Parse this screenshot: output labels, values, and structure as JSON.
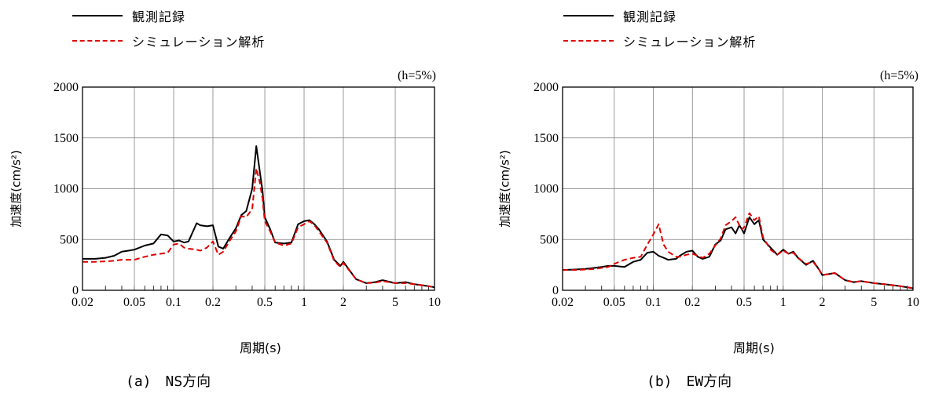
{
  "legend": {
    "observed": "観測記録",
    "simulation": "シミュレーション解析"
  },
  "colors": {
    "observed": "#000000",
    "simulation": "#e00000",
    "grid": "#808080"
  },
  "chart_data": [
    {
      "type": "line",
      "note": "(h=5%)",
      "caption": "(a)　NS方向",
      "xlabel": "周期(s)",
      "ylabel": "加速度(cm/s²)",
      "xscale": "log",
      "xlim": [
        0.02,
        10
      ],
      "ylim": [
        0,
        2000
      ],
      "xticks": [
        "0.02",
        "0.05",
        "0.1",
        "0.2",
        "0.5",
        "1",
        "2",
        "5",
        "10"
      ],
      "yticks": [
        "0",
        "500",
        "1000",
        "1500",
        "2000"
      ],
      "grid": true,
      "series": [
        {
          "name": "観測記録",
          "style": "solid",
          "x": [
            0.02,
            0.025,
            0.03,
            0.035,
            0.04,
            0.045,
            0.05,
            0.06,
            0.07,
            0.08,
            0.09,
            0.1,
            0.11,
            0.12,
            0.13,
            0.15,
            0.16,
            0.18,
            0.2,
            0.22,
            0.24,
            0.27,
            0.3,
            0.33,
            0.36,
            0.4,
            0.43,
            0.46,
            0.48,
            0.5,
            0.55,
            0.6,
            0.7,
            0.8,
            0.9,
            1.0,
            1.1,
            1.2,
            1.3,
            1.5,
            1.7,
            1.9,
            2.0,
            2.5,
            3.0,
            3.5,
            4.0,
            5.0,
            6.0,
            7.0,
            8.0,
            9.0,
            10.0
          ],
          "y": [
            310,
            310,
            320,
            340,
            380,
            390,
            400,
            440,
            460,
            550,
            540,
            480,
            490,
            470,
            480,
            660,
            640,
            630,
            640,
            430,
            410,
            520,
            610,
            740,
            780,
            1000,
            1420,
            1150,
            980,
            720,
            600,
            470,
            460,
            470,
            650,
            680,
            690,
            650,
            600,
            480,
            300,
            240,
            280,
            110,
            70,
            80,
            100,
            70,
            80,
            60,
            50,
            40,
            30
          ]
        },
        {
          "name": "シミュレーション解析",
          "style": "dashed",
          "x": [
            0.02,
            0.025,
            0.03,
            0.035,
            0.04,
            0.045,
            0.05,
            0.06,
            0.07,
            0.08,
            0.09,
            0.1,
            0.11,
            0.12,
            0.13,
            0.15,
            0.16,
            0.18,
            0.2,
            0.22,
            0.24,
            0.27,
            0.3,
            0.33,
            0.36,
            0.4,
            0.43,
            0.46,
            0.48,
            0.5,
            0.55,
            0.6,
            0.7,
            0.8,
            0.9,
            1.0,
            1.1,
            1.2,
            1.3,
            1.5,
            1.7,
            1.9,
            2.0,
            2.5,
            3.0,
            3.5,
            4.0,
            5.0,
            6.0,
            7.0,
            8.0,
            9.0,
            10.0
          ],
          "y": [
            280,
            280,
            285,
            290,
            300,
            300,
            300,
            330,
            350,
            360,
            370,
            450,
            460,
            420,
            410,
            400,
            390,
            420,
            480,
            350,
            380,
            490,
            580,
            730,
            720,
            800,
            1200,
            1050,
            900,
            680,
            580,
            470,
            440,
            460,
            620,
            650,
            680,
            640,
            580,
            470,
            290,
            230,
            270,
            110,
            70,
            75,
            90,
            70,
            70,
            60,
            50,
            40,
            30
          ]
        }
      ]
    },
    {
      "type": "line",
      "note": "(h=5%)",
      "caption": "(b)　EW方向",
      "xlabel": "周期(s)",
      "ylabel": "加速度(cm/s²)",
      "xscale": "log",
      "xlim": [
        0.02,
        10
      ],
      "ylim": [
        0,
        2000
      ],
      "xticks": [
        "0.02",
        "0.05",
        "0.1",
        "0.2",
        "0.5",
        "1",
        "2",
        "5",
        "10"
      ],
      "yticks": [
        "0",
        "500",
        "1000",
        "1500",
        "2000"
      ],
      "grid": true,
      "series": [
        {
          "name": "観測記録",
          "style": "solid",
          "x": [
            0.02,
            0.025,
            0.03,
            0.035,
            0.04,
            0.045,
            0.05,
            0.06,
            0.07,
            0.08,
            0.09,
            0.1,
            0.11,
            0.12,
            0.13,
            0.15,
            0.16,
            0.18,
            0.2,
            0.22,
            0.24,
            0.27,
            0.3,
            0.33,
            0.36,
            0.4,
            0.43,
            0.46,
            0.48,
            0.5,
            0.55,
            0.6,
            0.65,
            0.7,
            0.8,
            0.9,
            1.0,
            1.1,
            1.2,
            1.3,
            1.5,
            1.7,
            1.9,
            2.0,
            2.5,
            3.0,
            3.5,
            4.0,
            5.0,
            6.0,
            7.0,
            8.0,
            9.0,
            10.0
          ],
          "y": [
            200,
            205,
            210,
            220,
            230,
            240,
            240,
            230,
            280,
            300,
            370,
            380,
            340,
            320,
            300,
            310,
            340,
            380,
            390,
            330,
            310,
            330,
            450,
            490,
            600,
            620,
            560,
            640,
            600,
            560,
            720,
            650,
            690,
            500,
            420,
            350,
            400,
            360,
            380,
            320,
            250,
            290,
            200,
            150,
            170,
            100,
            80,
            90,
            70,
            60,
            50,
            40,
            30,
            20
          ]
        },
        {
          "name": "シミュレーション解析",
          "style": "dashed",
          "x": [
            0.02,
            0.025,
            0.03,
            0.035,
            0.04,
            0.045,
            0.05,
            0.06,
            0.07,
            0.08,
            0.09,
            0.1,
            0.11,
            0.12,
            0.13,
            0.15,
            0.16,
            0.18,
            0.2,
            0.22,
            0.24,
            0.27,
            0.3,
            0.33,
            0.36,
            0.4,
            0.43,
            0.46,
            0.48,
            0.5,
            0.55,
            0.6,
            0.65,
            0.7,
            0.8,
            0.9,
            1.0,
            1.1,
            1.2,
            1.3,
            1.5,
            1.7,
            1.9,
            2.0,
            2.5,
            3.0,
            3.5,
            4.0,
            5.0,
            6.0,
            7.0,
            8.0,
            9.0,
            10.0
          ],
          "y": [
            200,
            200,
            205,
            210,
            220,
            230,
            260,
            300,
            320,
            330,
            450,
            550,
            650,
            450,
            380,
            330,
            330,
            350,
            360,
            340,
            320,
            360,
            440,
            510,
            640,
            680,
            720,
            640,
            600,
            620,
            760,
            690,
            730,
            520,
            400,
            350,
            390,
            360,
            370,
            320,
            260,
            280,
            200,
            150,
            170,
            100,
            80,
            90,
            70,
            60,
            50,
            40,
            30,
            20
          ]
        }
      ]
    }
  ]
}
